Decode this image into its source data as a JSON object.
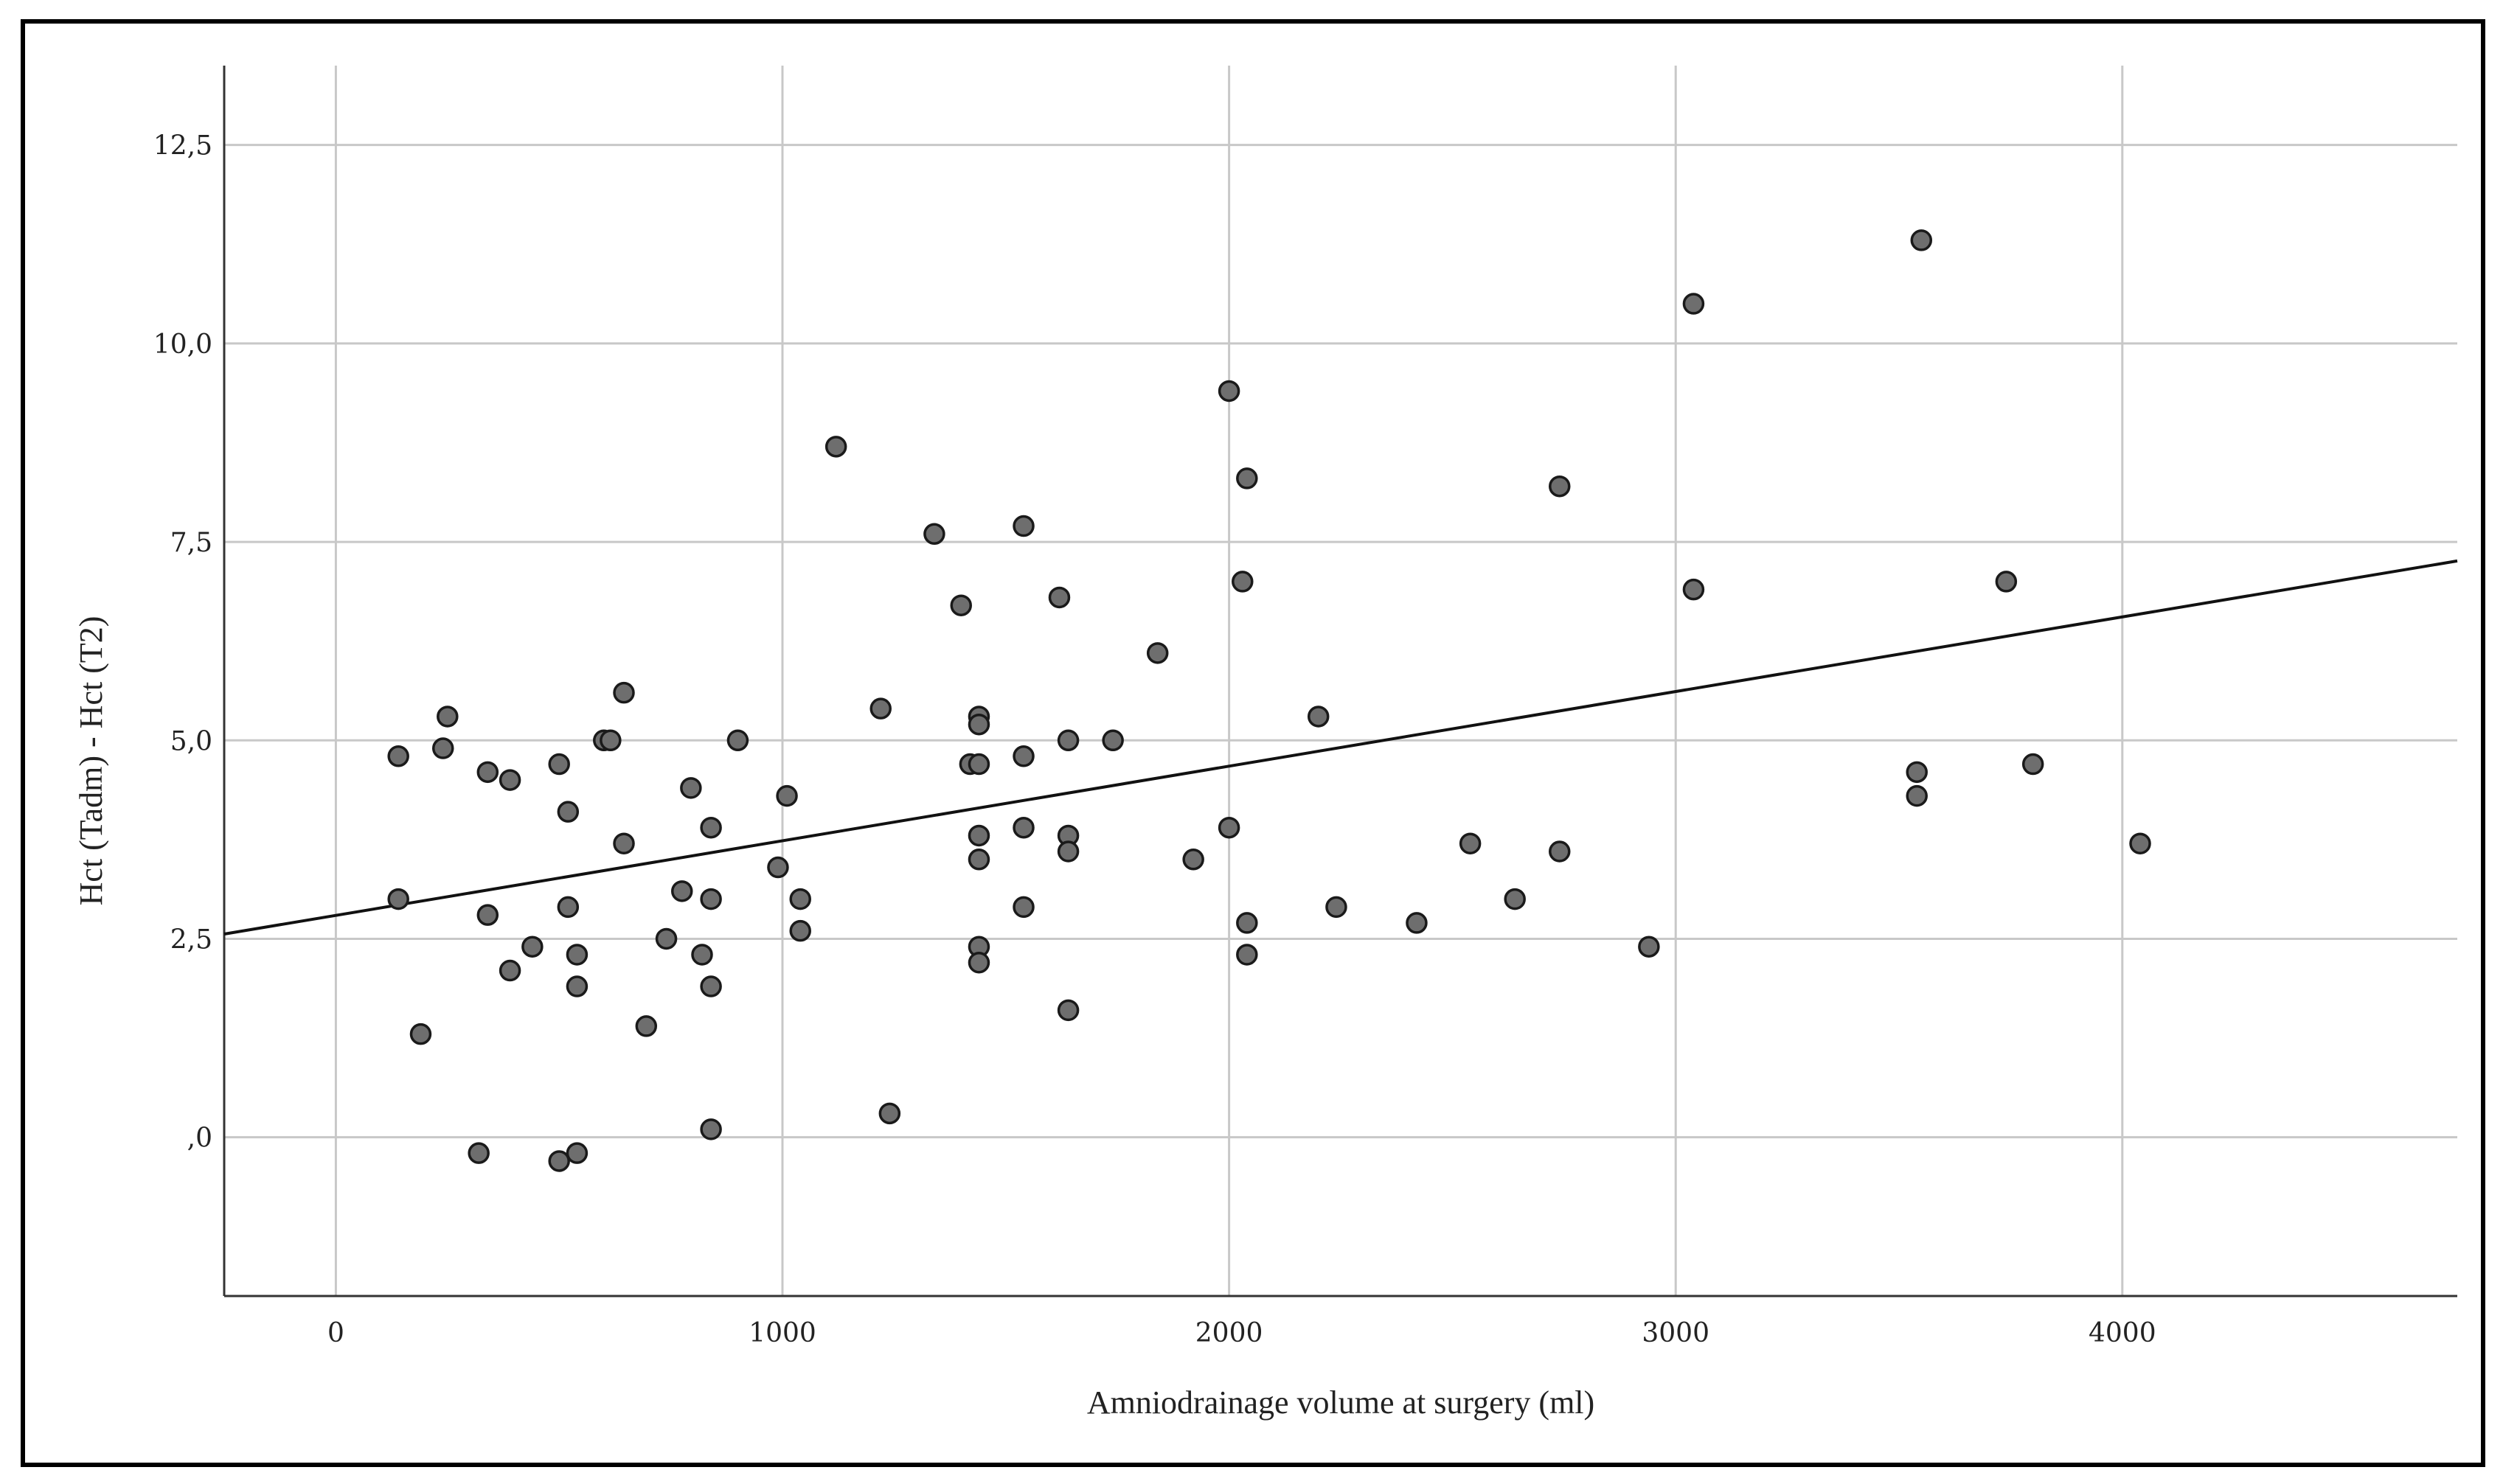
{
  "chart_data": {
    "type": "scatter",
    "xlabel": "Amniodrainage volume at surgery (ml)",
    "ylabel": "Hct (Tadm) - Hct (T2)",
    "xlim": [
      -250,
      4750
    ],
    "ylim": [
      -2,
      13.5
    ],
    "x_ticks": [
      0,
      1000,
      2000,
      3000,
      4000
    ],
    "x_tick_labels": [
      "0",
      "1000",
      "2000",
      "3000",
      "4000"
    ],
    "y_ticks": [
      0,
      2.5,
      5,
      7.5,
      10,
      12.5
    ],
    "y_tick_labels": [
      ",0",
      "2,5",
      "5,0",
      "7,5",
      "10,0",
      "12,5"
    ],
    "grid": true,
    "point_color": "#6e6e6e",
    "fit_line": {
      "type": "linear",
      "x": [
        -250,
        4750
      ],
      "y": [
        2.56,
        7.26
      ]
    },
    "points": [
      {
        "x": 140,
        "y": 4.8
      },
      {
        "x": 140,
        "y": 3.0
      },
      {
        "x": 190,
        "y": 1.3
      },
      {
        "x": 240,
        "y": 4.9
      },
      {
        "x": 250,
        "y": 5.3
      },
      {
        "x": 320,
        "y": -0.2
      },
      {
        "x": 340,
        "y": 4.6
      },
      {
        "x": 340,
        "y": 2.8
      },
      {
        "x": 390,
        "y": 4.5
      },
      {
        "x": 390,
        "y": 2.1
      },
      {
        "x": 440,
        "y": 2.4
      },
      {
        "x": 500,
        "y": 4.7
      },
      {
        "x": 500,
        "y": -0.3
      },
      {
        "x": 520,
        "y": 4.1
      },
      {
        "x": 520,
        "y": 2.9
      },
      {
        "x": 540,
        "y": 2.3
      },
      {
        "x": 540,
        "y": 1.9
      },
      {
        "x": 540,
        "y": -0.2
      },
      {
        "x": 600,
        "y": 5.0
      },
      {
        "x": 615,
        "y": 5.0
      },
      {
        "x": 645,
        "y": 5.6
      },
      {
        "x": 645,
        "y": 3.7
      },
      {
        "x": 695,
        "y": 1.4
      },
      {
        "x": 740,
        "y": 2.5
      },
      {
        "x": 775,
        "y": 3.1
      },
      {
        "x": 795,
        "y": 4.4
      },
      {
        "x": 820,
        "y": 2.3
      },
      {
        "x": 840,
        "y": 3.9
      },
      {
        "x": 840,
        "y": 3.0
      },
      {
        "x": 840,
        "y": 1.9
      },
      {
        "x": 840,
        "y": 0.1
      },
      {
        "x": 900,
        "y": 5.0
      },
      {
        "x": 990,
        "y": 3.4
      },
      {
        "x": 1010,
        "y": 4.3
      },
      {
        "x": 1040,
        "y": 3.0
      },
      {
        "x": 1040,
        "y": 2.6
      },
      {
        "x": 1120,
        "y": 8.7
      },
      {
        "x": 1220,
        "y": 5.4
      },
      {
        "x": 1240,
        "y": 0.3
      },
      {
        "x": 1340,
        "y": 7.6
      },
      {
        "x": 1400,
        "y": 6.7
      },
      {
        "x": 1420,
        "y": 4.7
      },
      {
        "x": 1440,
        "y": 5.3
      },
      {
        "x": 1440,
        "y": 5.2
      },
      {
        "x": 1440,
        "y": 4.7
      },
      {
        "x": 1440,
        "y": 3.8
      },
      {
        "x": 1440,
        "y": 3.5
      },
      {
        "x": 1440,
        "y": 2.4
      },
      {
        "x": 1440,
        "y": 2.2
      },
      {
        "x": 1540,
        "y": 7.7
      },
      {
        "x": 1540,
        "y": 4.8
      },
      {
        "x": 1540,
        "y": 3.9
      },
      {
        "x": 1540,
        "y": 2.9
      },
      {
        "x": 1620,
        "y": 6.8
      },
      {
        "x": 1640,
        "y": 5.0
      },
      {
        "x": 1640,
        "y": 3.8
      },
      {
        "x": 1640,
        "y": 3.6
      },
      {
        "x": 1640,
        "y": 1.6
      },
      {
        "x": 1740,
        "y": 5.0
      },
      {
        "x": 1840,
        "y": 6.1
      },
      {
        "x": 1920,
        "y": 3.5
      },
      {
        "x": 2000,
        "y": 9.4
      },
      {
        "x": 2000,
        "y": 3.9
      },
      {
        "x": 2030,
        "y": 7.0
      },
      {
        "x": 2040,
        "y": 8.3
      },
      {
        "x": 2040,
        "y": 2.7
      },
      {
        "x": 2040,
        "y": 2.3
      },
      {
        "x": 2200,
        "y": 5.3
      },
      {
        "x": 2240,
        "y": 2.9
      },
      {
        "x": 2420,
        "y": 2.7
      },
      {
        "x": 2540,
        "y": 3.7
      },
      {
        "x": 2640,
        "y": 3.0
      },
      {
        "x": 2740,
        "y": 8.2
      },
      {
        "x": 2740,
        "y": 3.6
      },
      {
        "x": 2940,
        "y": 2.4
      },
      {
        "x": 3040,
        "y": 10.5
      },
      {
        "x": 3040,
        "y": 6.9
      },
      {
        "x": 3540,
        "y": 4.6
      },
      {
        "x": 3540,
        "y": 4.3
      },
      {
        "x": 3550,
        "y": 11.3
      },
      {
        "x": 3740,
        "y": 7.0
      },
      {
        "x": 3800,
        "y": 4.7
      },
      {
        "x": 4040,
        "y": 3.7
      }
    ]
  }
}
